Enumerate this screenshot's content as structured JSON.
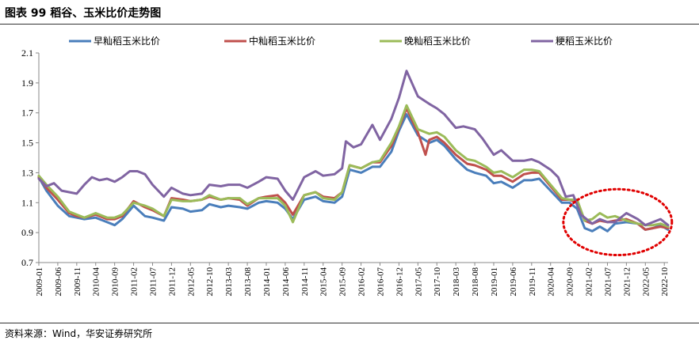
{
  "header": {
    "title": "图表 99  稻谷、玉米比价走势图"
  },
  "footer": {
    "source": "资料来源：Wind，华安证券研究所"
  },
  "chart_data": {
    "type": "line",
    "title": "图表 99  稻谷、玉米比价走势图",
    "xlabel": "",
    "ylabel": "",
    "ylim": [
      0.7,
      2.1
    ],
    "yticks": [
      "0.7",
      "0.9",
      "1.1",
      "1.3",
      "1.5",
      "1.7",
      "1.9",
      "2.1"
    ],
    "x_ticks": [
      "2009-01",
      "2009-06",
      "2009-11",
      "2010-04",
      "2010-09",
      "2011-02",
      "2011-07",
      "2011-12",
      "2012-05",
      "2012-10",
      "2013-03",
      "2013-08",
      "2014-01",
      "2014-06",
      "2014-11",
      "2015-04",
      "2015-09",
      "2016-02",
      "2016-07",
      "2016-12",
      "2017-05",
      "2017-10",
      "2018-03",
      "2018-08",
      "2019-01",
      "2019-06",
      "2019-11",
      "2020-04",
      "2020-09",
      "2021-02",
      "2021-07",
      "2021-12",
      "2022-05",
      "2022-10"
    ],
    "x_start": "2009-01",
    "x_end": "2022-11",
    "legend_position": "top",
    "grid": false,
    "annotation": {
      "shape": "dotted-ellipse",
      "color": "#e00000",
      "x_from": "2020-08",
      "x_to": "2022-12",
      "y_from": 0.75,
      "y_to": 1.19
    },
    "series": [
      {
        "name": "早籼稻玉米比价",
        "color": "#4a7ebb",
        "points": [
          [
            "2009-01",
            1.27
          ],
          [
            "2009-03",
            1.18
          ],
          [
            "2009-06",
            1.08
          ],
          [
            "2009-09",
            1.01
          ],
          [
            "2009-11",
            1.0
          ],
          [
            "2010-01",
            0.99
          ],
          [
            "2010-04",
            1.0
          ],
          [
            "2010-07",
            0.97
          ],
          [
            "2010-09",
            0.95
          ],
          [
            "2010-11",
            0.99
          ],
          [
            "2011-02",
            1.08
          ],
          [
            "2011-05",
            1.01
          ],
          [
            "2011-07",
            1.0
          ],
          [
            "2011-10",
            0.98
          ],
          [
            "2011-12",
            1.07
          ],
          [
            "2012-03",
            1.06
          ],
          [
            "2012-05",
            1.04
          ],
          [
            "2012-08",
            1.05
          ],
          [
            "2012-10",
            1.09
          ],
          [
            "2013-01",
            1.07
          ],
          [
            "2013-03",
            1.08
          ],
          [
            "2013-06",
            1.07
          ],
          [
            "2013-08",
            1.06
          ],
          [
            "2013-11",
            1.1
          ],
          [
            "2014-01",
            1.11
          ],
          [
            "2014-04",
            1.1
          ],
          [
            "2014-06",
            1.06
          ],
          [
            "2014-08",
            0.99
          ],
          [
            "2014-11",
            1.12
          ],
          [
            "2015-02",
            1.14
          ],
          [
            "2015-04",
            1.11
          ],
          [
            "2015-07",
            1.1
          ],
          [
            "2015-09",
            1.14
          ],
          [
            "2015-11",
            1.32
          ],
          [
            "2016-02",
            1.3
          ],
          [
            "2016-05",
            1.34
          ],
          [
            "2016-07",
            1.34
          ],
          [
            "2016-10",
            1.44
          ],
          [
            "2016-12",
            1.58
          ],
          [
            "2017-02",
            1.69
          ],
          [
            "2017-05",
            1.55
          ],
          [
            "2017-08",
            1.5
          ],
          [
            "2017-10",
            1.52
          ],
          [
            "2017-12",
            1.48
          ],
          [
            "2018-03",
            1.39
          ],
          [
            "2018-06",
            1.32
          ],
          [
            "2018-08",
            1.3
          ],
          [
            "2018-11",
            1.28
          ],
          [
            "2019-01",
            1.23
          ],
          [
            "2019-03",
            1.24
          ],
          [
            "2019-06",
            1.2
          ],
          [
            "2019-09",
            1.25
          ],
          [
            "2019-11",
            1.25
          ],
          [
            "2020-01",
            1.26
          ],
          [
            "2020-04",
            1.18
          ],
          [
            "2020-07",
            1.1
          ],
          [
            "2020-09",
            1.1
          ],
          [
            "2020-11",
            1.06
          ],
          [
            "2021-01",
            0.93
          ],
          [
            "2021-03",
            0.91
          ],
          [
            "2021-05",
            0.94
          ],
          [
            "2021-07",
            0.91
          ],
          [
            "2021-09",
            0.96
          ],
          [
            "2021-12",
            0.97
          ],
          [
            "2022-03",
            0.96
          ],
          [
            "2022-05",
            0.92
          ],
          [
            "2022-07",
            0.93
          ],
          [
            "2022-09",
            0.95
          ],
          [
            "2022-11",
            0.92
          ]
        ]
      },
      {
        "name": "中籼稻玉米比价",
        "color": "#c0504d",
        "points": [
          [
            "2009-01",
            1.27
          ],
          [
            "2009-03",
            1.2
          ],
          [
            "2009-06",
            1.12
          ],
          [
            "2009-09",
            1.03
          ],
          [
            "2009-11",
            1.01
          ],
          [
            "2010-01",
            1.0
          ],
          [
            "2010-04",
            1.02
          ],
          [
            "2010-07",
            0.99
          ],
          [
            "2010-09",
            0.99
          ],
          [
            "2010-11",
            1.01
          ],
          [
            "2011-02",
            1.11
          ],
          [
            "2011-05",
            1.07
          ],
          [
            "2011-07",
            1.05
          ],
          [
            "2011-10",
            1.01
          ],
          [
            "2011-12",
            1.13
          ],
          [
            "2012-03",
            1.12
          ],
          [
            "2012-05",
            1.11
          ],
          [
            "2012-08",
            1.12
          ],
          [
            "2012-10",
            1.14
          ],
          [
            "2013-01",
            1.12
          ],
          [
            "2013-03",
            1.13
          ],
          [
            "2013-06",
            1.12
          ],
          [
            "2013-08",
            1.08
          ],
          [
            "2013-11",
            1.13
          ],
          [
            "2014-01",
            1.14
          ],
          [
            "2014-04",
            1.15
          ],
          [
            "2014-06",
            1.1
          ],
          [
            "2014-08",
            1.02
          ],
          [
            "2014-11",
            1.15
          ],
          [
            "2015-02",
            1.17
          ],
          [
            "2015-04",
            1.14
          ],
          [
            "2015-07",
            1.13
          ],
          [
            "2015-09",
            1.17
          ],
          [
            "2015-11",
            1.35
          ],
          [
            "2016-02",
            1.33
          ],
          [
            "2016-05",
            1.37
          ],
          [
            "2016-07",
            1.37
          ],
          [
            "2016-10",
            1.48
          ],
          [
            "2016-12",
            1.6
          ],
          [
            "2017-02",
            1.73
          ],
          [
            "2017-05",
            1.57
          ],
          [
            "2017-07",
            1.42
          ],
          [
            "2017-08",
            1.52
          ],
          [
            "2017-10",
            1.54
          ],
          [
            "2017-12",
            1.5
          ],
          [
            "2018-03",
            1.42
          ],
          [
            "2018-06",
            1.36
          ],
          [
            "2018-08",
            1.35
          ],
          [
            "2018-11",
            1.32
          ],
          [
            "2019-01",
            1.28
          ],
          [
            "2019-03",
            1.28
          ],
          [
            "2019-06",
            1.24
          ],
          [
            "2019-09",
            1.29
          ],
          [
            "2019-11",
            1.3
          ],
          [
            "2020-01",
            1.3
          ],
          [
            "2020-04",
            1.21
          ],
          [
            "2020-07",
            1.12
          ],
          [
            "2020-09",
            1.12
          ],
          [
            "2020-11",
            1.1
          ],
          [
            "2021-01",
            0.98
          ],
          [
            "2021-03",
            0.96
          ],
          [
            "2021-05",
            0.98
          ],
          [
            "2021-07",
            0.97
          ],
          [
            "2021-09",
            0.98
          ],
          [
            "2021-12",
            0.99
          ],
          [
            "2022-03",
            0.96
          ],
          [
            "2022-05",
            0.92
          ],
          [
            "2022-07",
            0.93
          ],
          [
            "2022-09",
            0.94
          ],
          [
            "2022-11",
            0.93
          ]
        ]
      },
      {
        "name": "晚籼稻玉米比价",
        "color": "#9bbb59",
        "points": [
          [
            "2009-01",
            1.28
          ],
          [
            "2009-03",
            1.22
          ],
          [
            "2009-06",
            1.14
          ],
          [
            "2009-09",
            1.04
          ],
          [
            "2009-11",
            1.02
          ],
          [
            "2010-01",
            1.0
          ],
          [
            "2010-04",
            1.03
          ],
          [
            "2010-07",
            1.0
          ],
          [
            "2010-09",
            1.0
          ],
          [
            "2010-11",
            1.02
          ],
          [
            "2011-02",
            1.1
          ],
          [
            "2011-05",
            1.08
          ],
          [
            "2011-07",
            1.06
          ],
          [
            "2011-10",
            1.01
          ],
          [
            "2011-12",
            1.12
          ],
          [
            "2012-03",
            1.11
          ],
          [
            "2012-05",
            1.11
          ],
          [
            "2012-08",
            1.12
          ],
          [
            "2012-10",
            1.15
          ],
          [
            "2013-01",
            1.12
          ],
          [
            "2013-03",
            1.13
          ],
          [
            "2013-06",
            1.13
          ],
          [
            "2013-08",
            1.09
          ],
          [
            "2013-11",
            1.13
          ],
          [
            "2014-01",
            1.13
          ],
          [
            "2014-04",
            1.13
          ],
          [
            "2014-06",
            1.08
          ],
          [
            "2014-08",
            0.97
          ],
          [
            "2014-11",
            1.15
          ],
          [
            "2015-02",
            1.17
          ],
          [
            "2015-04",
            1.13
          ],
          [
            "2015-07",
            1.12
          ],
          [
            "2015-09",
            1.17
          ],
          [
            "2015-11",
            1.35
          ],
          [
            "2016-02",
            1.33
          ],
          [
            "2016-05",
            1.37
          ],
          [
            "2016-07",
            1.38
          ],
          [
            "2016-10",
            1.5
          ],
          [
            "2016-12",
            1.61
          ],
          [
            "2017-02",
            1.75
          ],
          [
            "2017-05",
            1.59
          ],
          [
            "2017-08",
            1.56
          ],
          [
            "2017-10",
            1.57
          ],
          [
            "2017-12",
            1.54
          ],
          [
            "2018-03",
            1.45
          ],
          [
            "2018-06",
            1.39
          ],
          [
            "2018-08",
            1.38
          ],
          [
            "2018-11",
            1.34
          ],
          [
            "2019-01",
            1.3
          ],
          [
            "2019-03",
            1.31
          ],
          [
            "2019-06",
            1.27
          ],
          [
            "2019-09",
            1.32
          ],
          [
            "2019-11",
            1.32
          ],
          [
            "2020-01",
            1.31
          ],
          [
            "2020-04",
            1.22
          ],
          [
            "2020-07",
            1.13
          ],
          [
            "2020-09",
            1.12
          ],
          [
            "2020-11",
            1.12
          ],
          [
            "2021-01",
            0.98
          ],
          [
            "2021-03",
            0.99
          ],
          [
            "2021-05",
            1.03
          ],
          [
            "2021-07",
            1.0
          ],
          [
            "2021-09",
            1.01
          ],
          [
            "2021-12",
            0.98
          ],
          [
            "2022-03",
            0.96
          ],
          [
            "2022-05",
            0.95
          ],
          [
            "2022-07",
            0.95
          ],
          [
            "2022-09",
            0.96
          ],
          [
            "2022-11",
            0.94
          ]
        ]
      },
      {
        "name": "粳稻玉米比价",
        "color": "#8064a2",
        "points": [
          [
            "2009-01",
            1.26
          ],
          [
            "2009-03",
            1.21
          ],
          [
            "2009-05",
            1.23
          ],
          [
            "2009-07",
            1.18
          ],
          [
            "2009-11",
            1.16
          ],
          [
            "2010-01",
            1.22
          ],
          [
            "2010-03",
            1.27
          ],
          [
            "2010-05",
            1.25
          ],
          [
            "2010-07",
            1.26
          ],
          [
            "2010-09",
            1.24
          ],
          [
            "2010-11",
            1.27
          ],
          [
            "2011-01",
            1.31
          ],
          [
            "2011-03",
            1.31
          ],
          [
            "2011-05",
            1.29
          ],
          [
            "2011-07",
            1.22
          ],
          [
            "2011-10",
            1.14
          ],
          [
            "2011-12",
            1.2
          ],
          [
            "2012-03",
            1.16
          ],
          [
            "2012-05",
            1.15
          ],
          [
            "2012-08",
            1.16
          ],
          [
            "2012-10",
            1.22
          ],
          [
            "2013-01",
            1.21
          ],
          [
            "2013-03",
            1.22
          ],
          [
            "2013-06",
            1.22
          ],
          [
            "2013-08",
            1.2
          ],
          [
            "2013-11",
            1.24
          ],
          [
            "2014-01",
            1.27
          ],
          [
            "2014-04",
            1.26
          ],
          [
            "2014-06",
            1.18
          ],
          [
            "2014-08",
            1.12
          ],
          [
            "2014-11",
            1.27
          ],
          [
            "2015-02",
            1.31
          ],
          [
            "2015-04",
            1.28
          ],
          [
            "2015-07",
            1.29
          ],
          [
            "2015-09",
            1.33
          ],
          [
            "2015-10",
            1.51
          ],
          [
            "2015-12",
            1.47
          ],
          [
            "2016-02",
            1.49
          ],
          [
            "2016-05",
            1.62
          ],
          [
            "2016-07",
            1.52
          ],
          [
            "2016-10",
            1.66
          ],
          [
            "2016-12",
            1.8
          ],
          [
            "2017-02",
            1.98
          ],
          [
            "2017-05",
            1.81
          ],
          [
            "2017-08",
            1.76
          ],
          [
            "2017-10",
            1.73
          ],
          [
            "2017-12",
            1.69
          ],
          [
            "2018-03",
            1.6
          ],
          [
            "2018-05",
            1.61
          ],
          [
            "2018-08",
            1.59
          ],
          [
            "2018-10",
            1.53
          ],
          [
            "2019-01",
            1.42
          ],
          [
            "2019-03",
            1.45
          ],
          [
            "2019-06",
            1.38
          ],
          [
            "2019-09",
            1.38
          ],
          [
            "2019-11",
            1.39
          ],
          [
            "2020-01",
            1.37
          ],
          [
            "2020-04",
            1.32
          ],
          [
            "2020-06",
            1.27
          ],
          [
            "2020-08",
            1.14
          ],
          [
            "2020-10",
            1.15
          ],
          [
            "2020-12",
            1.02
          ],
          [
            "2021-03",
            0.96
          ],
          [
            "2021-05",
            0.99
          ],
          [
            "2021-07",
            0.97
          ],
          [
            "2021-09",
            0.97
          ],
          [
            "2021-12",
            1.03
          ],
          [
            "2022-03",
            0.99
          ],
          [
            "2022-05",
            0.95
          ],
          [
            "2022-07",
            0.97
          ],
          [
            "2022-09",
            0.99
          ],
          [
            "2022-11",
            0.95
          ]
        ]
      }
    ]
  }
}
